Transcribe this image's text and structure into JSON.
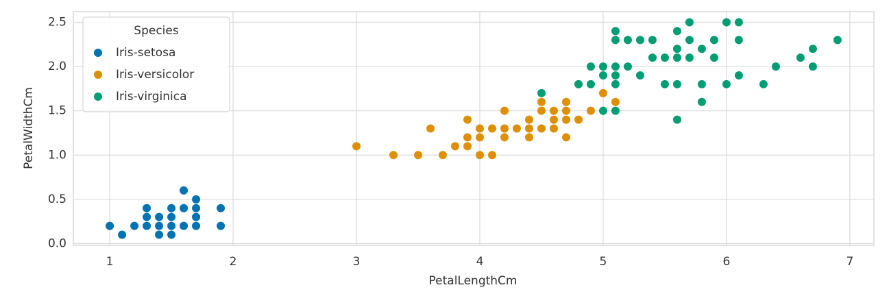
{
  "chart_data": {
    "type": "scatter",
    "x_label": "PetalLengthCm",
    "y_label": "PetalWidthCm",
    "legend_title": "Species",
    "legend": "upper left",
    "grid": true,
    "xlim": [
      0.705,
      7.195
    ],
    "ylim": [
      -0.02,
      2.62
    ],
    "xticks": [
      1,
      2,
      3,
      4,
      5,
      6,
      7
    ],
    "yticks": [
      {
        "value": 0,
        "label": "0.0"
      },
      0.5,
      {
        "value": 1,
        "label": "1.0"
      },
      1.5,
      {
        "value": 2,
        "label": "2.0"
      },
      2.5
    ],
    "series": [
      {
        "name": "Iris-setosa",
        "color": "#0173b2",
        "x": [
          1.0,
          1.1,
          1.2,
          1.3,
          1.3,
          1.3,
          1.4,
          1.4,
          1.4,
          1.5,
          1.5,
          1.5,
          1.5,
          1.6,
          1.6,
          1.6,
          1.7,
          1.7,
          1.7,
          1.7,
          1.9,
          1.9
        ],
        "values": [
          0.2,
          0.1,
          0.2,
          0.2,
          0.3,
          0.4,
          0.1,
          0.2,
          0.3,
          0.1,
          0.2,
          0.3,
          0.4,
          0.2,
          0.4,
          0.6,
          0.2,
          0.3,
          0.4,
          0.5,
          0.2,
          0.4
        ]
      },
      {
        "name": "Iris-versicolor",
        "color": "#de8f05",
        "x": [
          3.0,
          3.3,
          3.5,
          3.6,
          3.7,
          3.8,
          3.9,
          3.9,
          3.9,
          4.0,
          4.0,
          4.0,
          4.1,
          4.1,
          4.2,
          4.2,
          4.2,
          4.3,
          4.4,
          4.4,
          4.4,
          4.5,
          4.5,
          4.5,
          4.6,
          4.6,
          4.6,
          4.7,
          4.7,
          4.7,
          4.7,
          4.8,
          4.8,
          4.9,
          5.0,
          5.1
        ],
        "values": [
          1.1,
          1.0,
          1.0,
          1.3,
          1.0,
          1.1,
          1.1,
          1.2,
          1.4,
          1.0,
          1.2,
          1.3,
          1.0,
          1.3,
          1.2,
          1.3,
          1.5,
          1.3,
          1.2,
          1.3,
          1.4,
          1.3,
          1.5,
          1.6,
          1.3,
          1.4,
          1.5,
          1.2,
          1.4,
          1.5,
          1.6,
          1.4,
          1.8,
          1.5,
          1.7,
          1.6
        ]
      },
      {
        "name": "Iris-virginica",
        "color": "#029e73",
        "x": [
          4.5,
          4.8,
          4.9,
          4.9,
          5.0,
          5.0,
          5.0,
          5.1,
          5.1,
          5.1,
          5.1,
          5.1,
          5.1,
          5.2,
          5.2,
          5.3,
          5.3,
          5.4,
          5.4,
          5.5,
          5.5,
          5.6,
          5.6,
          5.6,
          5.6,
          5.6,
          5.7,
          5.7,
          5.7,
          5.8,
          5.8,
          5.8,
          5.9,
          5.9,
          6.0,
          6.0,
          6.1,
          6.1,
          6.1,
          6.3,
          6.4,
          6.6,
          6.7,
          6.7,
          6.9
        ],
        "values": [
          1.7,
          1.8,
          1.8,
          2.0,
          1.5,
          1.9,
          2.0,
          1.5,
          1.8,
          1.9,
          2.0,
          2.3,
          2.4,
          2.0,
          2.3,
          1.9,
          2.3,
          2.1,
          2.3,
          1.8,
          2.1,
          1.4,
          1.8,
          2.1,
          2.2,
          2.4,
          2.1,
          2.3,
          2.5,
          1.6,
          1.8,
          2.2,
          2.1,
          2.3,
          1.8,
          2.5,
          1.9,
          2.3,
          2.5,
          1.8,
          2.0,
          2.1,
          2.0,
          2.2,
          2.3
        ]
      }
    ]
  }
}
